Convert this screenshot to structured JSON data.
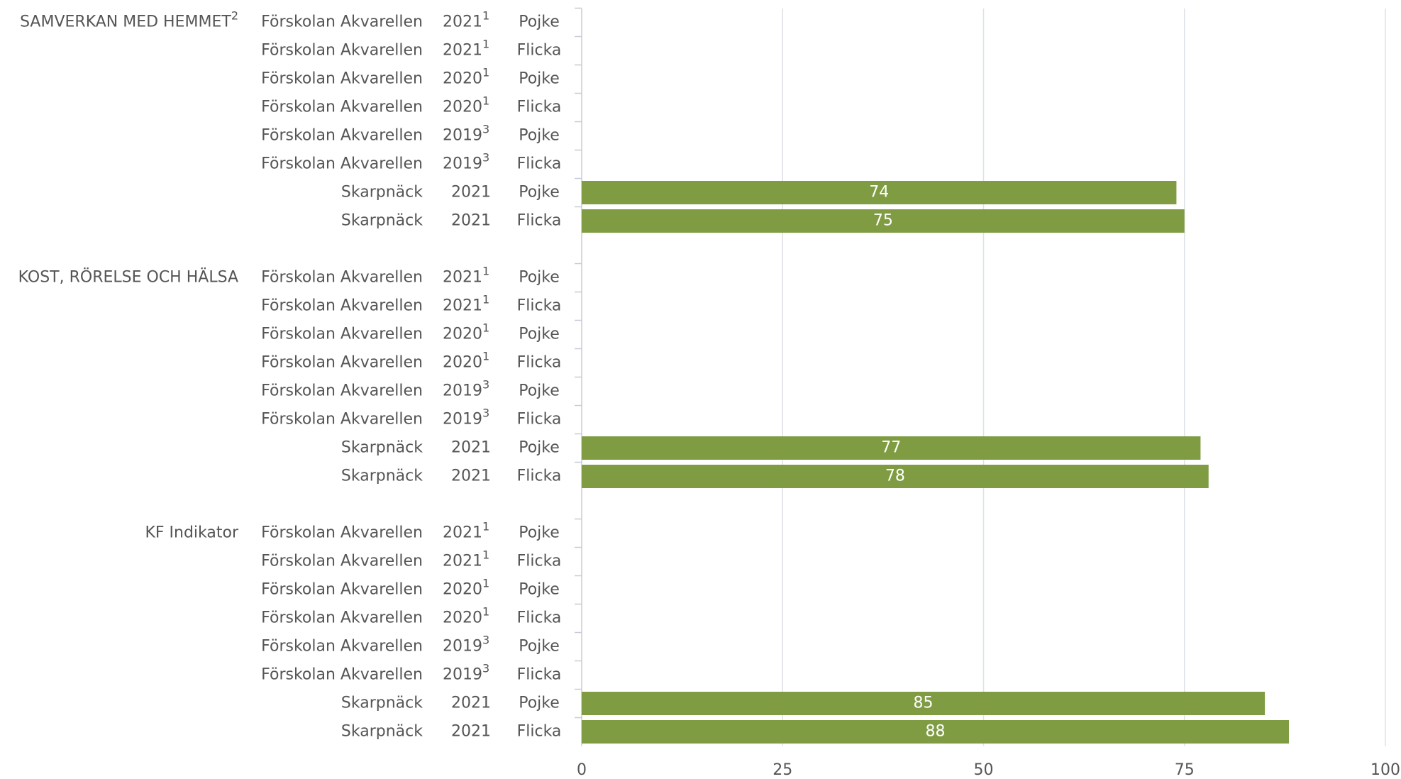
{
  "chart_data": {
    "type": "bar",
    "orientation": "horizontal",
    "color": "#7f9c43",
    "grid": true,
    "xlim": [
      0,
      100
    ],
    "xticks": [
      0,
      25,
      50,
      75,
      100
    ],
    "groups": [
      {
        "label": "SAMVERKAN MED HEMMET",
        "footnote": "2",
        "rows": [
          {
            "school": "Förskolan Akvarellen",
            "year": "2021",
            "footnote": "1",
            "gender": "Pojke",
            "value": null
          },
          {
            "school": "Förskolan Akvarellen",
            "year": "2021",
            "footnote": "1",
            "gender": "Flicka",
            "value": null
          },
          {
            "school": "Förskolan Akvarellen",
            "year": "2020",
            "footnote": "1",
            "gender": "Pojke",
            "value": null
          },
          {
            "school": "Förskolan Akvarellen",
            "year": "2020",
            "footnote": "1",
            "gender": "Flicka",
            "value": null
          },
          {
            "school": "Förskolan Akvarellen",
            "year": "2019",
            "footnote": "3",
            "gender": "Pojke",
            "value": null
          },
          {
            "school": "Förskolan Akvarellen",
            "year": "2019",
            "footnote": "3",
            "gender": "Flicka",
            "value": null
          },
          {
            "school": "Skarpnäck",
            "year": "2021",
            "gender": "Pojke",
            "value": 74
          },
          {
            "school": "Skarpnäck",
            "year": "2021",
            "gender": "Flicka",
            "value": 75
          }
        ]
      },
      {
        "label": "KOST, RÖRELSE OCH HÄLSA",
        "rows": [
          {
            "school": "Förskolan Akvarellen",
            "year": "2021",
            "footnote": "1",
            "gender": "Pojke",
            "value": null
          },
          {
            "school": "Förskolan Akvarellen",
            "year": "2021",
            "footnote": "1",
            "gender": "Flicka",
            "value": null
          },
          {
            "school": "Förskolan Akvarellen",
            "year": "2020",
            "footnote": "1",
            "gender": "Pojke",
            "value": null
          },
          {
            "school": "Förskolan Akvarellen",
            "year": "2020",
            "footnote": "1",
            "gender": "Flicka",
            "value": null
          },
          {
            "school": "Förskolan Akvarellen",
            "year": "2019",
            "footnote": "3",
            "gender": "Pojke",
            "value": null
          },
          {
            "school": "Förskolan Akvarellen",
            "year": "2019",
            "footnote": "3",
            "gender": "Flicka",
            "value": null
          },
          {
            "school": "Skarpnäck",
            "year": "2021",
            "gender": "Pojke",
            "value": 77
          },
          {
            "school": "Skarpnäck",
            "year": "2021",
            "gender": "Flicka",
            "value": 78
          }
        ]
      },
      {
        "label": "KF Indikator",
        "rows": [
          {
            "school": "Förskolan Akvarellen",
            "year": "2021",
            "footnote": "1",
            "gender": "Pojke",
            "value": null
          },
          {
            "school": "Förskolan Akvarellen",
            "year": "2021",
            "footnote": "1",
            "gender": "Flicka",
            "value": null
          },
          {
            "school": "Förskolan Akvarellen",
            "year": "2020",
            "footnote": "1",
            "gender": "Pojke",
            "value": null
          },
          {
            "school": "Förskolan Akvarellen",
            "year": "2020",
            "footnote": "1",
            "gender": "Flicka",
            "value": null
          },
          {
            "school": "Förskolan Akvarellen",
            "year": "2019",
            "footnote": "3",
            "gender": "Pojke",
            "value": null
          },
          {
            "school": "Förskolan Akvarellen",
            "year": "2019",
            "footnote": "3",
            "gender": "Flicka",
            "value": null
          },
          {
            "school": "Skarpnäck",
            "year": "2021",
            "gender": "Pojke",
            "value": 85
          },
          {
            "school": "Skarpnäck",
            "year": "2021",
            "gender": "Flicka",
            "value": 88
          }
        ]
      }
    ]
  }
}
